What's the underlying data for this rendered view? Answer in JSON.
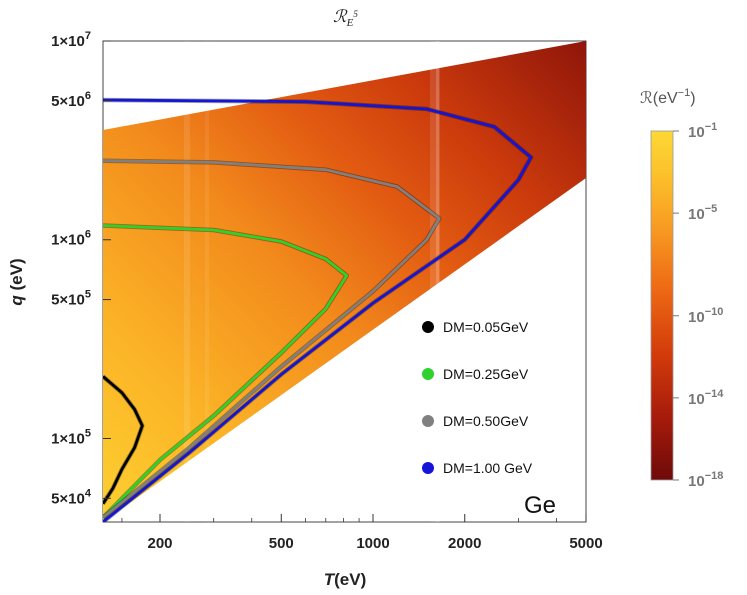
{
  "chart_data": {
    "type": "heatmap",
    "title": "ℛ",
    "title_subscript": "E",
    "title_superscript": "5",
    "xlabel": "T(eV)",
    "ylabel": "q (eV)",
    "x_scale": "log",
    "y_scale": "log",
    "xlim": [
      130,
      5000
    ],
    "ylim": [
      38000,
      10000000
    ],
    "x_ticks": [
      {
        "value": 200,
        "label": "200"
      },
      {
        "value": 500,
        "label": "500"
      },
      {
        "value": 1000,
        "label": "1000"
      },
      {
        "value": 2000,
        "label": "2000"
      },
      {
        "value": 5000,
        "label": "5000"
      }
    ],
    "y_ticks": [
      {
        "value": 50000,
        "mant": "5",
        "label": "5×10",
        "exp": "4"
      },
      {
        "value": 100000,
        "mant": "1",
        "label": "1×10",
        "exp": "5"
      },
      {
        "value": 500000,
        "mant": "5",
        "label": "5×10",
        "exp": "5"
      },
      {
        "value": 1000000,
        "mant": "1",
        "label": "1×10",
        "exp": "6"
      },
      {
        "value": 5000000,
        "mant": "5",
        "label": "5×10",
        "exp": "6"
      },
      {
        "value": 10000000,
        "mant": "1",
        "label": "1×10",
        "exp": "7"
      }
    ],
    "material_label": "Ge",
    "grid": false,
    "legend_position": "bottom-right inside plot",
    "colorbar": {
      "title": "ℛ(eV",
      "title_exp": "−1",
      "title_close": ")",
      "scale": "log",
      "range": [
        1e-18,
        0.1
      ],
      "labels": [
        {
          "value": 0.1,
          "base": "10",
          "exp": "−1"
        },
        {
          "value": 1e-05,
          "base": "10",
          "exp": "−5"
        },
        {
          "value": 1e-10,
          "base": "10",
          "exp": "−10"
        },
        {
          "value": 1e-14,
          "base": "10",
          "exp": "−14"
        },
        {
          "value": 1e-18,
          "base": "10",
          "exp": "−18"
        }
      ],
      "colors": [
        "#6e0a0a",
        "#a61b0b",
        "#d23b0b",
        "#ee6a14",
        "#f89a22",
        "#fcc22c",
        "#fdd835"
      ]
    },
    "series": [
      {
        "name": "DM=0.05GeV",
        "color": "#000000",
        "q_max_x": 175,
        "q_max_y": 116000,
        "points": [
          [
            130,
            205000
          ],
          [
            150,
            170000
          ],
          [
            165,
            140000
          ],
          [
            175,
            116000
          ],
          [
            165,
            90000
          ],
          [
            150,
            70000
          ],
          [
            140,
            56000
          ],
          [
            130,
            47000
          ]
        ]
      },
      {
        "name": "DM=0.25GeV",
        "color": "#2fd12f",
        "q_max_x": 820,
        "q_max_y": 660000,
        "points": [
          [
            130,
            1180000
          ],
          [
            300,
            1120000
          ],
          [
            500,
            980000
          ],
          [
            700,
            800000
          ],
          [
            820,
            660000
          ],
          [
            700,
            450000
          ],
          [
            500,
            270000
          ],
          [
            300,
            130000
          ],
          [
            200,
            78000
          ],
          [
            130,
            40000
          ]
        ]
      },
      {
        "name": "DM=0.50GeV",
        "color": "#808080",
        "q_max_x": 1650,
        "q_max_y": 1280000,
        "points": [
          [
            130,
            2500000
          ],
          [
            300,
            2450000
          ],
          [
            700,
            2250000
          ],
          [
            1200,
            1850000
          ],
          [
            1650,
            1280000
          ],
          [
            1500,
            1000000
          ],
          [
            1000,
            550000
          ],
          [
            500,
            230000
          ],
          [
            250,
            90000
          ],
          [
            130,
            40000
          ]
        ]
      },
      {
        "name": "DM=1.00 GeV",
        "color": "#1515d8",
        "q_max_x": 3300,
        "q_max_y": 2600000,
        "points": [
          [
            130,
            5050000
          ],
          [
            600,
            4950000
          ],
          [
            1500,
            4550000
          ],
          [
            2500,
            3700000
          ],
          [
            3300,
            2600000
          ],
          [
            3000,
            2000000
          ],
          [
            2000,
            1000000
          ],
          [
            1000,
            480000
          ],
          [
            500,
            210000
          ],
          [
            250,
            85000
          ],
          [
            130,
            38000
          ]
        ]
      }
    ],
    "legend": [
      {
        "label": "DM=0.05GeV",
        "color": "#000000"
      },
      {
        "label": "DM=0.25GeV",
        "color": "#2fd12f"
      },
      {
        "label": "DM=0.50GeV",
        "color": "#808080"
      },
      {
        "label": "DM=1.00 GeV",
        "color": "#1515d8"
      }
    ]
  }
}
